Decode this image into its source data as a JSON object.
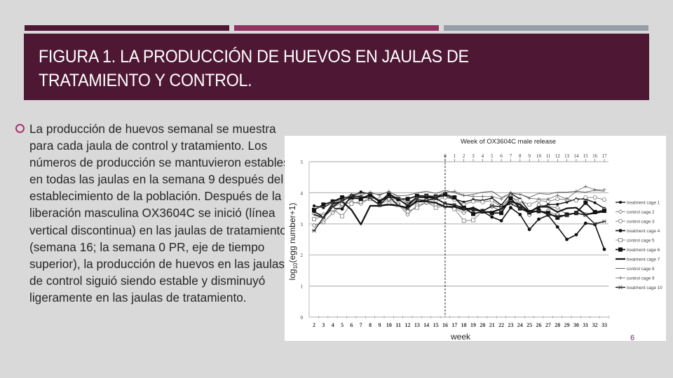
{
  "slide": {
    "decor_bars": [
      {
        "color": "#4e1733"
      },
      {
        "color": "#913262"
      },
      {
        "color": "#969fa7"
      }
    ],
    "title": "FIGURA 1. LA PRODUCCIÓN DE HUEVOS EN JAULAS DE\nTRATAMIENTO Y CONTROL.",
    "title_bg": "#4e1733",
    "bullets": [
      {
        "icon": "hollow-circle-bullet-icon",
        "text": "La producción de huevos semanal se muestra para cada jaula de control y tratamiento. Los números de producción se mantuvieron estables en todas las jaulas en la semana 9 después del establecimiento de la población. Después de la liberación masculina OX3604C se inició (línea vertical discontinua) en las jaulas de tratamiento (semana 16; la semana 0 PR, eje de tiempo superior), la producción de huevos en las jaulas de control siguió siendo estable y disminuyó ligeramente en las jaulas de tratamiento."
      }
    ],
    "page_number": "6"
  },
  "chart_data": {
    "type": "line",
    "title": "Week of OX3604C male release",
    "xlabel": "week",
    "ylabel": "log10(egg number+1)",
    "ylim": [
      0,
      5
    ],
    "yticks": [
      0,
      1,
      2,
      3,
      4,
      5
    ],
    "grid": true,
    "legend_position": "right",
    "x": [
      2,
      3,
      4,
      5,
      6,
      7,
      8,
      9,
      10,
      11,
      12,
      13,
      14,
      15,
      16,
      17,
      18,
      19,
      20,
      21,
      22,
      23,
      24,
      25,
      26,
      27,
      28,
      29,
      30,
      31,
      32,
      33
    ],
    "top_axis": {
      "label": "Week of OX3604C male release",
      "ticks": [
        0,
        1,
        2,
        3,
        4,
        5,
        6,
        7,
        8,
        9,
        10,
        11,
        12,
        13,
        14,
        15,
        16,
        17
      ],
      "starts_at_week": 16
    },
    "release_line_week": 16,
    "series": [
      {
        "name": "treatment cage 1",
        "marker": "small-filled-circle",
        "width": 1.4,
        "values": [
          3.58,
          3.52,
          3.7,
          3.83,
          3.88,
          4.03,
          3.95,
          3.7,
          3.98,
          3.78,
          3.62,
          3.88,
          3.88,
          3.85,
          3.9,
          3.8,
          3.7,
          3.78,
          3.75,
          3.83,
          3.6,
          3.98,
          3.8,
          3.4,
          3.52,
          3.62,
          3.63,
          3.7,
          3.8,
          3.8,
          3.68,
          3.5
        ]
      },
      {
        "name": "control cage 2",
        "marker": "open-diamond",
        "width": 0.8,
        "values": [
          2.95,
          3.05,
          3.35,
          3.6,
          3.7,
          3.65,
          3.82,
          3.62,
          3.78,
          3.62,
          3.3,
          3.6,
          3.68,
          3.62,
          3.55,
          3.5,
          3.35,
          3.5,
          3.42,
          3.55,
          3.42,
          3.9,
          3.62,
          3.28,
          3.62,
          3.55,
          3.52,
          3.3,
          3.35,
          3.3,
          3.38,
          3.45
        ]
      },
      {
        "name": "control cage 3",
        "marker": "open-circle",
        "width": 0.8,
        "values": [
          3.35,
          3.3,
          3.55,
          3.65,
          3.8,
          3.82,
          3.85,
          3.8,
          3.82,
          3.78,
          3.6,
          3.7,
          3.8,
          3.75,
          3.85,
          3.78,
          3.62,
          3.72,
          3.7,
          3.75,
          3.55,
          3.85,
          3.75,
          3.62,
          3.75,
          3.72,
          3.8,
          3.78,
          3.75,
          3.85,
          3.85,
          3.78
        ]
      },
      {
        "name": "treatment cage 4",
        "marker": "filled-circle",
        "width": 1.6,
        "values": [
          3.4,
          3.22,
          3.5,
          3.48,
          3.92,
          3.85,
          3.9,
          3.72,
          3.88,
          3.8,
          3.58,
          3.85,
          3.85,
          3.82,
          3.65,
          3.6,
          3.52,
          3.45,
          3.4,
          3.22,
          3.1,
          3.52,
          3.3,
          2.82,
          3.15,
          3.28,
          2.9,
          2.5,
          2.65,
          3.02,
          2.98,
          2.18
        ]
      },
      {
        "name": "control cage 5",
        "marker": "open-square",
        "width": 0.8,
        "values": [
          3.15,
          3.25,
          3.48,
          3.25,
          3.65,
          3.72,
          3.8,
          3.6,
          3.65,
          3.62,
          3.4,
          3.52,
          3.7,
          3.52,
          3.58,
          3.48,
          3.1,
          3.12,
          3.42,
          3.58,
          3.38,
          3.75,
          3.55,
          3.35,
          3.4,
          3.4,
          3.28,
          3.28,
          3.35,
          3.3,
          3.38,
          3.45
        ]
      },
      {
        "name": "treatment cage 6",
        "marker": "filled-square",
        "width": 1.8,
        "values": [
          3.45,
          3.62,
          3.72,
          3.85,
          3.85,
          3.8,
          3.95,
          3.72,
          3.95,
          3.8,
          3.8,
          3.9,
          3.9,
          3.88,
          3.95,
          3.85,
          3.52,
          3.32,
          3.4,
          3.35,
          3.35,
          3.82,
          3.5,
          3.38,
          3.42,
          3.35,
          3.2,
          3.3,
          3.35,
          3.68,
          3.38,
          3.42
        ]
      },
      {
        "name": "treatment cage 7",
        "marker": "none",
        "width": 2.2,
        "values": [
          3.3,
          3.2,
          3.65,
          3.72,
          3.45,
          2.98,
          3.58,
          3.58,
          3.62,
          3.58,
          3.52,
          3.72,
          3.72,
          3.68,
          3.55,
          3.55,
          3.45,
          3.52,
          3.38,
          3.38,
          3.48,
          3.72,
          3.62,
          3.38,
          3.55,
          3.55,
          3.38,
          3.5,
          3.52,
          3.3,
          3.35,
          3.4
        ]
      },
      {
        "name": "control cage 8",
        "marker": "none",
        "width": 1.0,
        "values": [
          3.5,
          3.55,
          3.7,
          3.78,
          3.95,
          3.98,
          3.98,
          3.95,
          4.02,
          3.9,
          3.92,
          4.0,
          4.05,
          3.98,
          4.08,
          4.0,
          3.9,
          3.95,
          4.02,
          4.05,
          3.85,
          3.98,
          3.95,
          3.85,
          3.98,
          3.95,
          4.02,
          4.02,
          4.05,
          4.02,
          4.08,
          4.05
        ]
      },
      {
        "name": "control cage 9",
        "marker": "plus",
        "width": 0.8,
        "values": [
          3.3,
          3.2,
          3.6,
          3.7,
          3.95,
          3.92,
          4.02,
          3.92,
          4.05,
          3.85,
          3.68,
          3.85,
          3.92,
          3.88,
          4.02,
          4.05,
          3.92,
          3.88,
          3.88,
          3.88,
          3.8,
          4.0,
          3.95,
          3.82,
          3.8,
          3.8,
          3.92,
          3.8,
          4.05,
          4.2,
          4.1,
          4.1
        ]
      },
      {
        "name": "treatment cage 10",
        "marker": "asterisk",
        "width": 1.4,
        "values": [
          2.78,
          3.2,
          3.55,
          3.75,
          3.88,
          3.88,
          3.82,
          3.62,
          3.88,
          3.6,
          3.48,
          3.78,
          3.75,
          3.82,
          3.65,
          3.62,
          3.48,
          3.45,
          3.4,
          3.58,
          3.55,
          3.65,
          3.5,
          3.35,
          3.42,
          3.3,
          3.25,
          3.28,
          3.35,
          3.28,
          3.0,
          3.08
        ]
      }
    ]
  }
}
